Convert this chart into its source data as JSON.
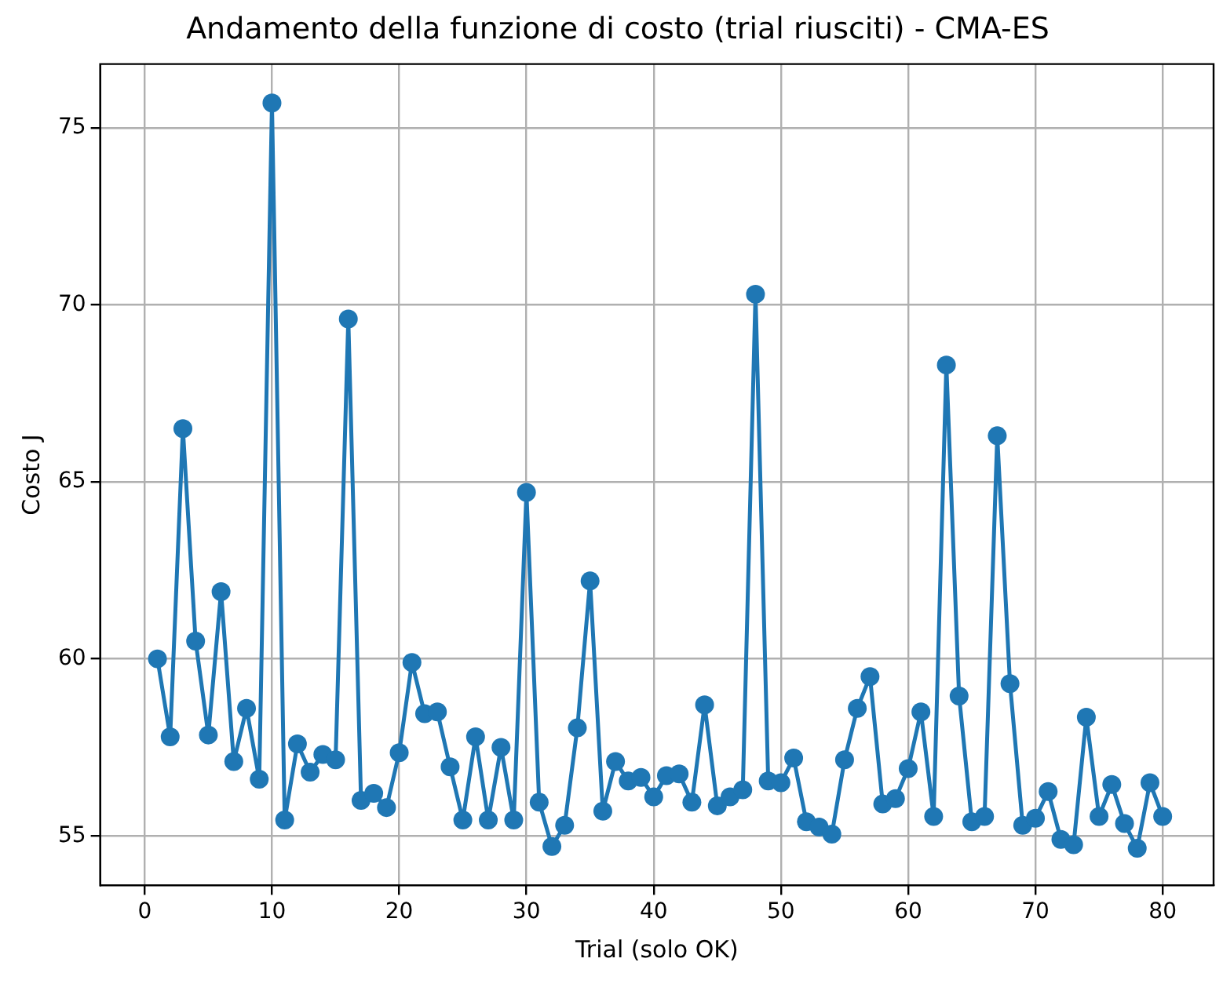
{
  "chart_data": {
    "type": "line",
    "title": "Andamento della funzione di costo (trial riusciti) - CMA-ES",
    "xlabel": "Trial (solo OK)",
    "ylabel": "Costo J",
    "x": [
      1,
      2,
      3,
      4,
      5,
      6,
      7,
      8,
      9,
      10,
      11,
      12,
      13,
      14,
      15,
      16,
      17,
      18,
      19,
      20,
      21,
      22,
      23,
      24,
      25,
      26,
      27,
      28,
      29,
      30,
      31,
      32,
      33,
      34,
      35,
      36,
      37,
      38,
      39,
      40,
      41,
      42,
      43,
      44,
      45,
      46,
      47,
      48,
      49,
      50,
      51,
      52,
      53,
      54,
      55,
      56,
      57,
      58,
      59,
      60,
      61,
      62,
      63,
      64,
      65,
      66,
      67,
      68,
      69,
      70,
      71,
      72,
      73,
      74,
      75,
      76,
      77,
      78,
      79,
      80
    ],
    "series": [
      {
        "color": "#1f77b4",
        "values": [
          60.0,
          57.8,
          66.5,
          60.5,
          57.85,
          61.9,
          57.1,
          58.6,
          56.6,
          75.7,
          55.45,
          57.6,
          56.8,
          57.3,
          57.15,
          69.6,
          56.0,
          56.2,
          55.8,
          57.35,
          59.9,
          58.45,
          58.5,
          56.95,
          55.45,
          57.8,
          55.45,
          57.5,
          55.45,
          64.7,
          55.95,
          54.7,
          55.3,
          58.05,
          62.2,
          55.7,
          57.1,
          56.55,
          56.65,
          56.1,
          56.7,
          56.75,
          55.95,
          58.7,
          55.85,
          56.1,
          56.3,
          70.3,
          56.55,
          56.5,
          57.2,
          55.4,
          55.25,
          55.05,
          57.15,
          58.6,
          59.5,
          55.9,
          56.05,
          56.9,
          58.5,
          55.55,
          68.3,
          58.95,
          55.4,
          55.55,
          66.3,
          59.3,
          55.3,
          55.5,
          56.25,
          54.9,
          54.75,
          58.35,
          55.55,
          56.45,
          55.35,
          54.65,
          56.5,
          55.55
        ]
      }
    ],
    "xlim": [
      -3.5,
      84
    ],
    "ylim": [
      53.6,
      76.8
    ],
    "xticks": [
      0,
      10,
      20,
      30,
      40,
      50,
      60,
      70,
      80
    ],
    "yticks": [
      55,
      60,
      65,
      70,
      75
    ],
    "grid": true,
    "marker": "circle",
    "line_style": "solid"
  }
}
